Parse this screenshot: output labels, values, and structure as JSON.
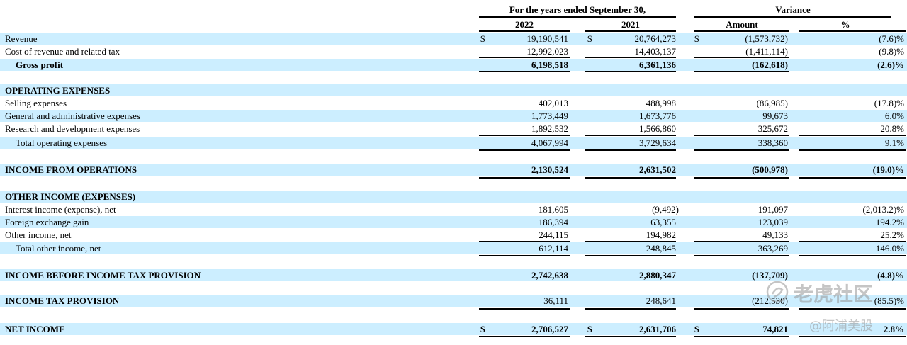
{
  "header": {
    "period": "For the years ended September 30,",
    "variance": "Variance",
    "col_2022": "2022",
    "col_2021": "2021",
    "col_amount": "Amount",
    "col_pct": "%"
  },
  "rows": [
    {
      "label": "Revenue",
      "v2022": "19,190,541",
      "v2021": "20,764,273",
      "amount": "(1,573,732)",
      "pct": "(7.6)%",
      "dollar": "$"
    },
    {
      "label": "Cost of revenue and related tax",
      "v2022": "12,992,023",
      "v2021": "14,403,137",
      "amount": "(1,411,114)",
      "pct": "(9.8)%"
    },
    {
      "label": "Gross profit",
      "v2022": "6,198,518",
      "v2021": "6,361,136",
      "amount": "(162,618)",
      "pct": "(2.6)%"
    },
    {
      "label": "OPERATING EXPENSES"
    },
    {
      "label": "Selling expenses",
      "v2022": "402,013",
      "v2021": "488,998",
      "amount": "(86,985)",
      "pct": "(17.8)%"
    },
    {
      "label": "General and administrative expenses",
      "v2022": "1,773,449",
      "v2021": "1,673,776",
      "amount": "99,673",
      "pct": "6.0%"
    },
    {
      "label": "Research and development expenses",
      "v2022": "1,892,532",
      "v2021": "1,566,860",
      "amount": "325,672",
      "pct": "20.8%"
    },
    {
      "label": "Total operating expenses",
      "v2022": "4,067,994",
      "v2021": "3,729,634",
      "amount": "338,360",
      "pct": "9.1%"
    },
    {
      "label": "INCOME FROM OPERATIONS",
      "v2022": "2,130,524",
      "v2021": "2,631,502",
      "amount": "(500,978)",
      "pct": "(19.0)%"
    },
    {
      "label": "OTHER INCOME (EXPENSES)"
    },
    {
      "label": "Interest income (expense), net",
      "v2022": "181,605",
      "v2021": "(9,492)",
      "amount": "191,097",
      "pct": "(2,013.2)%"
    },
    {
      "label": "Foreign exchange gain",
      "v2022": "186,394",
      "v2021": "63,355",
      "amount": "123,039",
      "pct": "194.2%"
    },
    {
      "label": "Other income, net",
      "v2022": "244,115",
      "v2021": "194,982",
      "amount": "49,133",
      "pct": "25.2%"
    },
    {
      "label": "Total other income, net",
      "v2022": "612,114",
      "v2021": "248,845",
      "amount": "363,269",
      "pct": "146.0%"
    },
    {
      "label": "INCOME BEFORE INCOME TAX PROVISION",
      "v2022": "2,742,638",
      "v2021": "2,880,347",
      "amount": "(137,709)",
      "pct": "(4.8)%"
    },
    {
      "label": "INCOME TAX PROVISION",
      "v2022": "36,111",
      "v2021": "248,641",
      "amount": "(212,530)",
      "pct": "(85.5)%"
    },
    {
      "label": "NET INCOME",
      "v2022": "2,706,527",
      "v2021": "2,631,706",
      "amount": "74,821",
      "pct": "2.8%",
      "dollar": "$"
    }
  ],
  "watermark": {
    "line1": "老虎社区",
    "line2": "@阿浦美股"
  }
}
